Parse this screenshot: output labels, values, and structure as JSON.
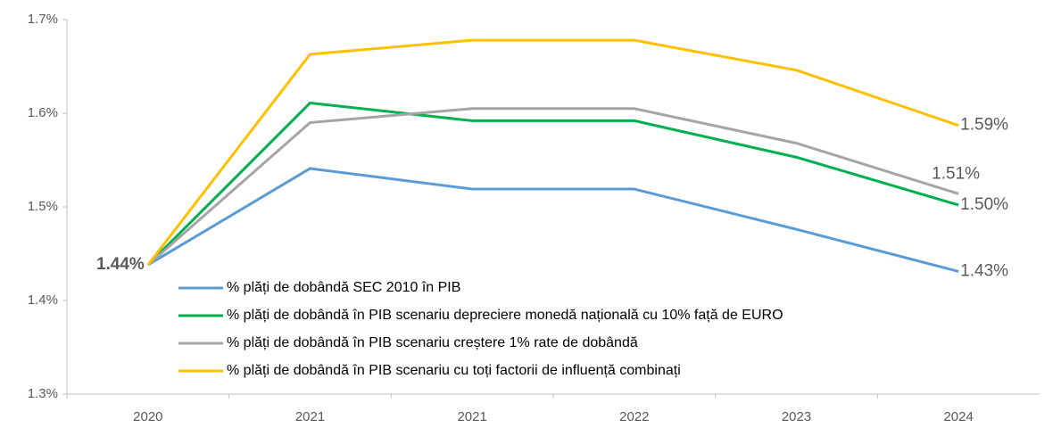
{
  "chart_data": {
    "type": "line",
    "categories": [
      "2020",
      "2021",
      "2021",
      "2022",
      "2023",
      "2024"
    ],
    "ylim": [
      1.3,
      1.7
    ],
    "yticks": [
      {
        "value": 1.3,
        "label": "1.3%"
      },
      {
        "value": 1.4,
        "label": "1.4%"
      },
      {
        "value": 1.5,
        "label": "1.5%"
      },
      {
        "value": 1.6,
        "label": "1.6%"
      },
      {
        "value": 1.7,
        "label": "1.7%"
      }
    ],
    "grid": false,
    "legend": "inside",
    "series": [
      {
        "name": "% plăți de dobândă SEC 2010 în PIB",
        "color": "#5b9bd5",
        "label_color": "#2e75b6",
        "values": [
          1.438,
          1.541,
          1.519,
          1.519,
          1.476,
          1.431
        ],
        "value_labels": [
          null,
          null,
          null,
          null,
          null,
          "1.43%"
        ]
      },
      {
        "name": "% plăți de dobândă în PIB scenariu depreciere monedă națională cu 10% față de EURO",
        "color": "#00b050",
        "label_color": "#00b050",
        "values": [
          1.438,
          1.611,
          1.592,
          1.592,
          1.553,
          1.502
        ],
        "value_labels": [
          null,
          null,
          null,
          null,
          null,
          "1.50%"
        ]
      },
      {
        "name": "% plăți de dobândă în PIB scenariu creștere 1% rate de dobândă",
        "color": "#a5a5a5",
        "label_color": "#7f7f7f",
        "values": [
          1.438,
          1.59,
          1.605,
          1.605,
          1.568,
          1.514
        ],
        "value_labels": [
          null,
          null,
          null,
          null,
          null,
          "1.51%"
        ]
      },
      {
        "name": "% plăți de dobândă în PIB scenariu cu toți factorii de influență combinați",
        "color": "#ffc000",
        "label_color": "#bf9000",
        "values": [
          1.438,
          1.663,
          1.678,
          1.678,
          1.646,
          1.587
        ],
        "value_labels": [
          "1.44%",
          null,
          null,
          null,
          null,
          "1.59%"
        ]
      }
    ]
  }
}
